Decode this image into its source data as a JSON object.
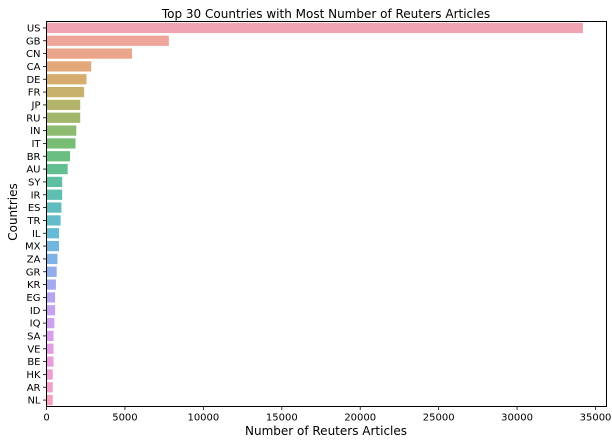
{
  "chart_data": {
    "type": "bar",
    "orientation": "horizontal",
    "title": "Top 30 Countries with Most Number of Reuters Articles",
    "xlabel": "Number of Reuters Articles",
    "ylabel": "Countries",
    "xlim": [
      0,
      35700
    ],
    "xticks": [
      0,
      5000,
      10000,
      15000,
      20000,
      25000,
      30000,
      35000
    ],
    "grid": false,
    "categories": [
      "US",
      "GB",
      "CN",
      "CA",
      "DE",
      "FR",
      "JP",
      "RU",
      "IN",
      "IT",
      "BR",
      "AU",
      "SY",
      "IR",
      "ES",
      "TR",
      "IL",
      "MX",
      "ZA",
      "GR",
      "KR",
      "EG",
      "ID",
      "IQ",
      "SA",
      "VE",
      "BE",
      "HK",
      "AR",
      "NL"
    ],
    "values": [
      34200,
      7800,
      5450,
      2850,
      2550,
      2400,
      2150,
      2150,
      1900,
      1850,
      1500,
      1350,
      1000,
      1000,
      950,
      900,
      800,
      800,
      700,
      650,
      600,
      550,
      550,
      500,
      450,
      450,
      450,
      400,
      400,
      400
    ],
    "colors": [
      "#f0a3b0",
      "#f0a59a",
      "#eba58a",
      "#e3a87a",
      "#d7ac6f",
      "#c7b06a",
      "#b5b46b",
      "#a3b76c",
      "#8dbb6f",
      "#78bd74",
      "#6abf80",
      "#62bf92",
      "#5fbfa3",
      "#5ebfb0",
      "#60bdbe",
      "#63bcc9",
      "#67bad4",
      "#71b7dd",
      "#80b2e5",
      "#92adea",
      "#a5a9ee",
      "#b5a5ef",
      "#c3a2ef",
      "#cfa0ef",
      "#d99eec",
      "#e39de6",
      "#eb9edf",
      "#f09fd5",
      "#f3a1cb",
      "#f4a2c0"
    ]
  }
}
